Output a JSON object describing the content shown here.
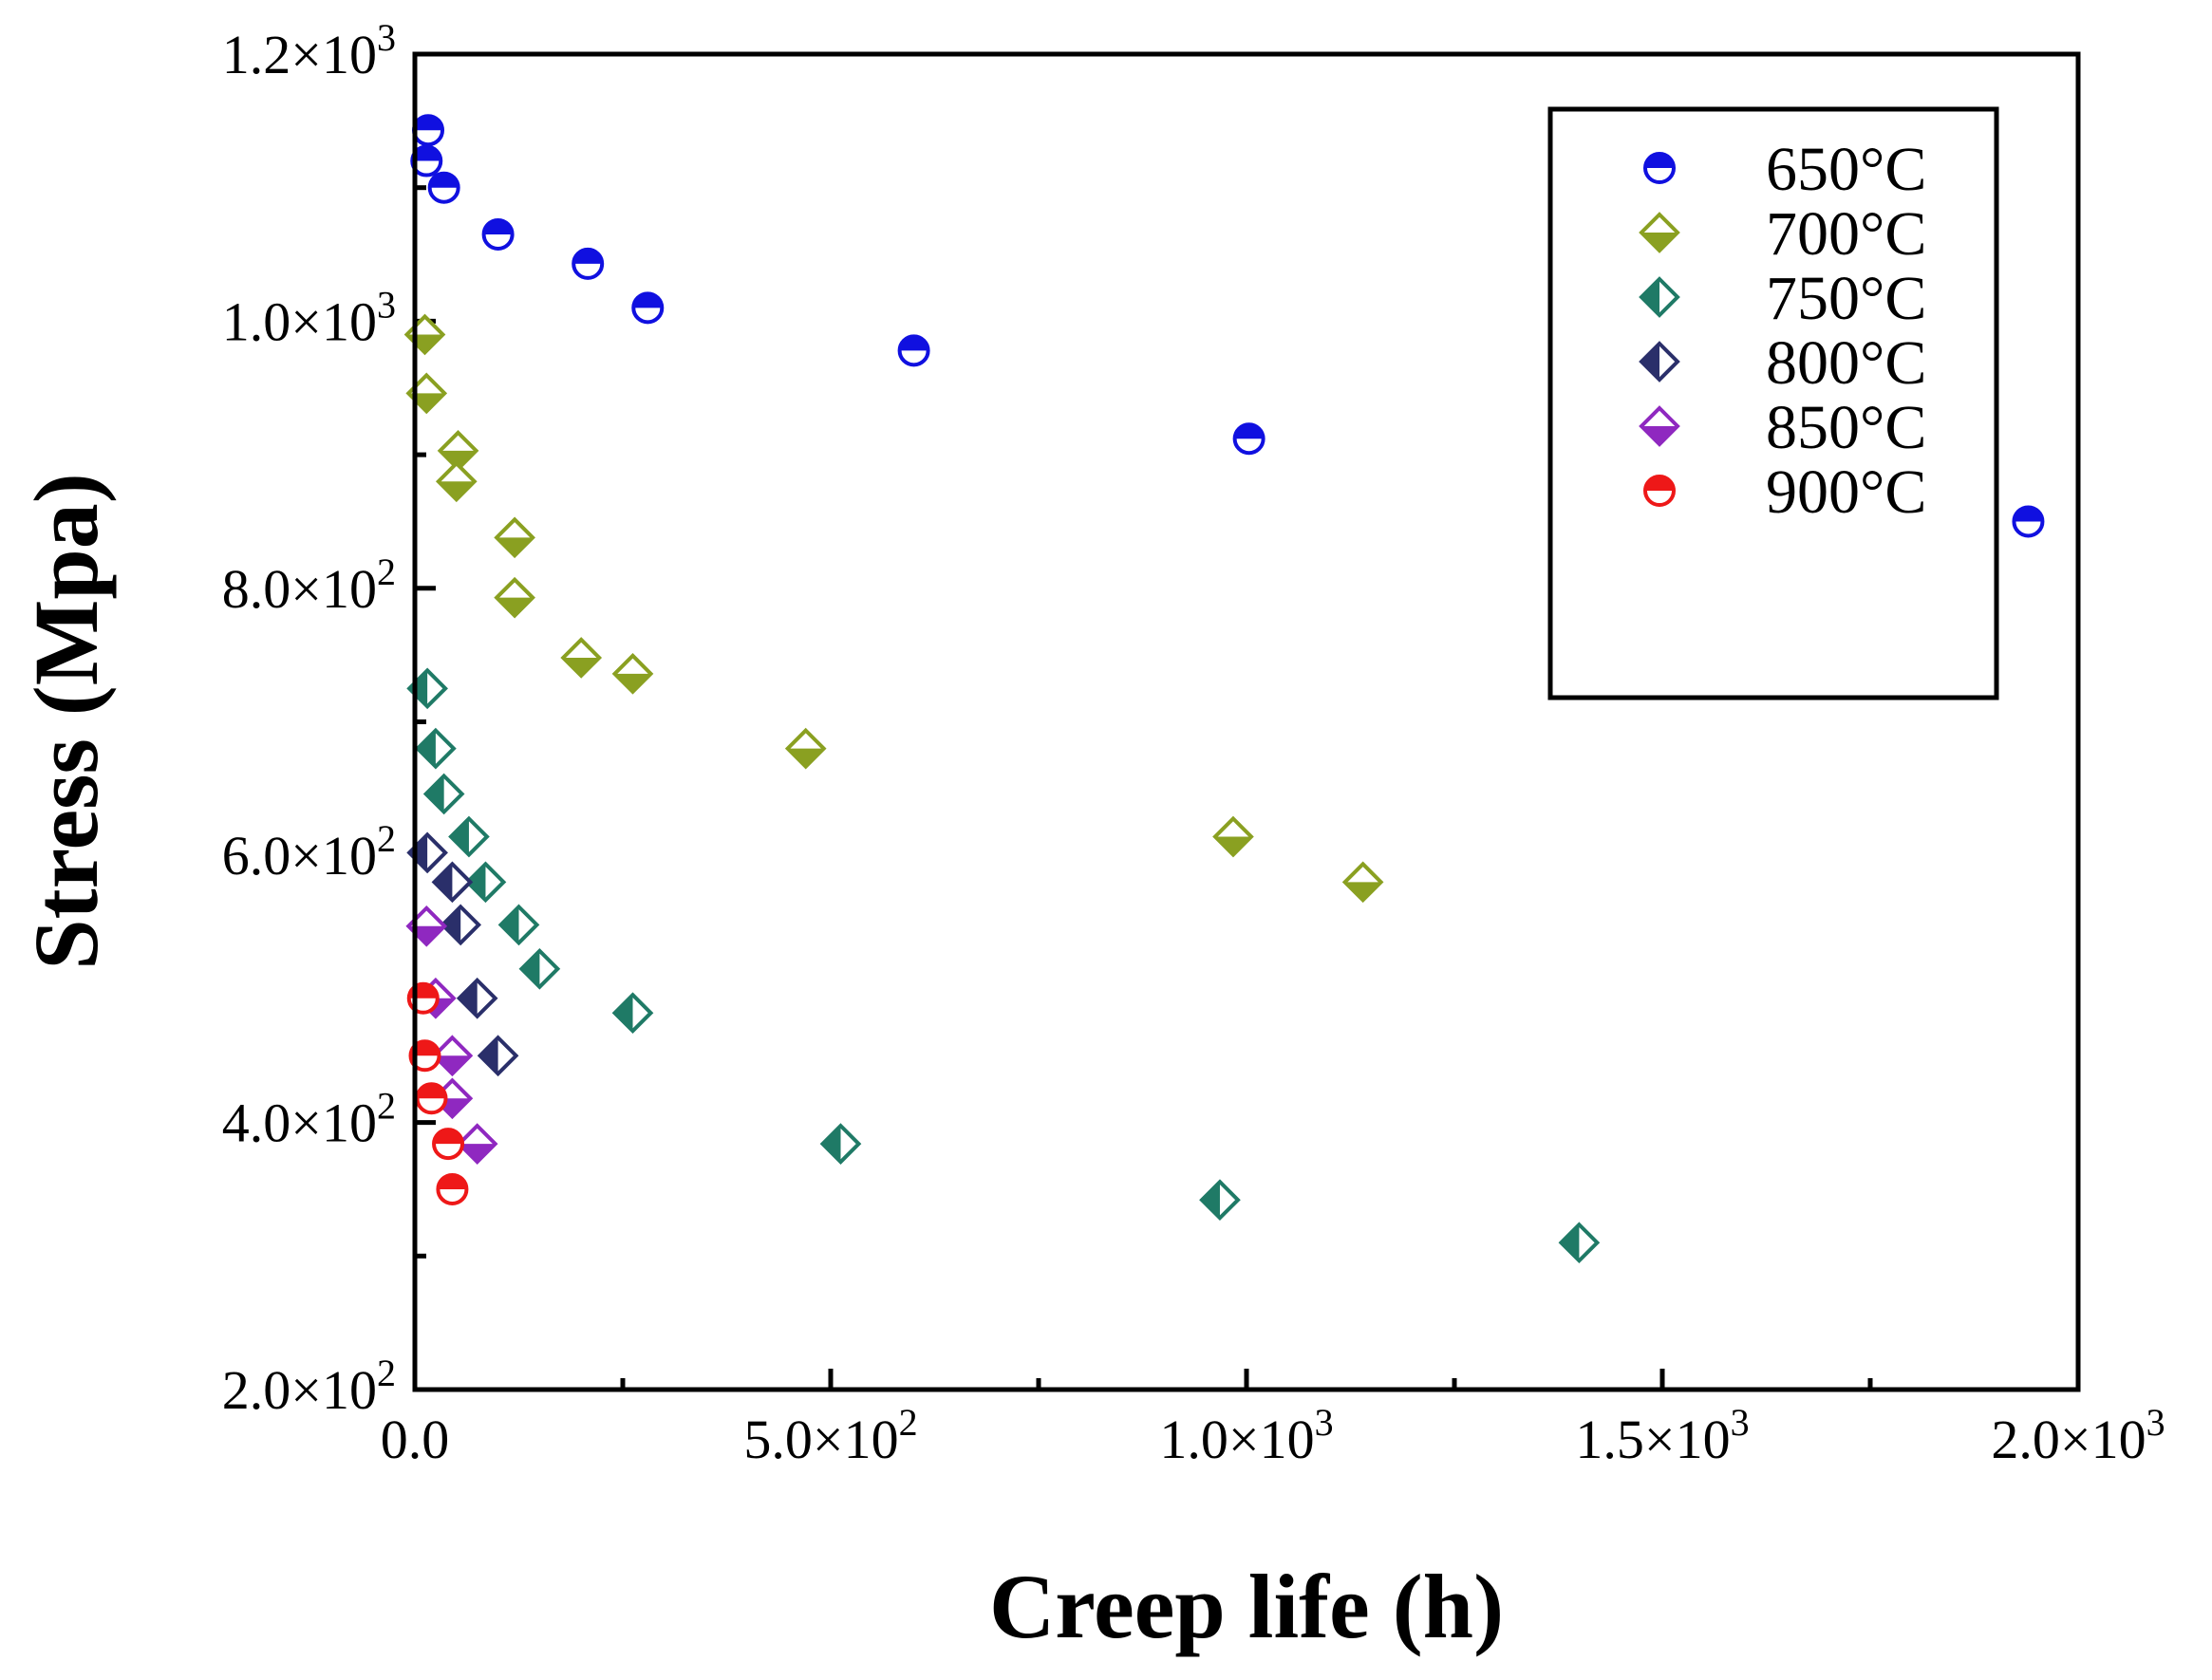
{
  "chart_data": {
    "type": "scatter",
    "xlabel": "Creep life (h)",
    "ylabel": "Stress (Mpa)",
    "xlim": [
      0,
      2000
    ],
    "ylim": [
      200,
      1200
    ],
    "grid": false,
    "legend_position": "top-right",
    "x_ticks": [
      {
        "value": 0,
        "label": "0.0"
      },
      {
        "value": 500,
        "label": "5.0×10",
        "exp": "2"
      },
      {
        "value": 1000,
        "label": "1.0×10",
        "exp": "3"
      },
      {
        "value": 1500,
        "label": "1.5×10",
        "exp": "3"
      },
      {
        "value": 2000,
        "label": "2.0×10",
        "exp": "3"
      }
    ],
    "y_ticks": [
      {
        "value": 200,
        "label": "2.0×10",
        "exp": "2"
      },
      {
        "value": 400,
        "label": "4.0×10",
        "exp": "2"
      },
      {
        "value": 600,
        "label": "6.0×10",
        "exp": "2"
      },
      {
        "value": 800,
        "label": "8.0×10",
        "exp": "2"
      },
      {
        "value": 1000,
        "label": "1.0×10",
        "exp": "3"
      },
      {
        "value": 1200,
        "label": "1.2×10",
        "exp": "3"
      }
    ],
    "series": [
      {
        "name": "650°C",
        "marker": "circle-half-top",
        "color": "#1010e0",
        "points": [
          [
            16,
            1143
          ],
          [
            14,
            1120
          ],
          [
            35,
            1100
          ],
          [
            100,
            1065
          ],
          [
            208,
            1043
          ],
          [
            280,
            1010
          ],
          [
            600,
            978
          ],
          [
            1003,
            912
          ],
          [
            1940,
            850
          ]
        ]
      },
      {
        "name": "700°C",
        "marker": "diamond-half-bottom",
        "color": "#8aa021",
        "points": [
          [
            12,
            990
          ],
          [
            14,
            946
          ],
          [
            52,
            903
          ],
          [
            50,
            880
          ],
          [
            120,
            838
          ],
          [
            120,
            793
          ],
          [
            200,
            748
          ],
          [
            262,
            736
          ],
          [
            470,
            680
          ],
          [
            984,
            614
          ],
          [
            1140,
            580
          ]
        ]
      },
      {
        "name": "750°C",
        "marker": "diamond-half-left",
        "color": "#1f7a66",
        "points": [
          [
            15,
            725
          ],
          [
            25,
            680
          ],
          [
            35,
            646
          ],
          [
            65,
            614
          ],
          [
            85,
            580
          ],
          [
            125,
            548
          ],
          [
            150,
            515
          ],
          [
            262,
            482
          ],
          [
            512,
            384
          ],
          [
            968,
            342
          ],
          [
            1400,
            310
          ]
        ]
      },
      {
        "name": "800°C",
        "marker": "diamond-half-left",
        "color": "#2a2f6a",
        "points": [
          [
            15,
            602
          ],
          [
            45,
            580
          ],
          [
            55,
            548
          ],
          [
            75,
            493
          ],
          [
            100,
            450
          ]
        ]
      },
      {
        "name": "850°C",
        "marker": "diamond-half-bottom",
        "color": "#8f28c0",
        "points": [
          [
            14,
            547
          ],
          [
            25,
            493
          ],
          [
            45,
            450
          ],
          [
            45,
            418
          ],
          [
            75,
            384
          ]
        ]
      },
      {
        "name": "900°C",
        "marker": "circle-half-top",
        "color": "#ee1818",
        "points": [
          [
            10,
            493
          ],
          [
            12,
            450
          ],
          [
            20,
            418
          ],
          [
            40,
            384
          ],
          [
            45,
            350
          ]
        ]
      }
    ]
  }
}
